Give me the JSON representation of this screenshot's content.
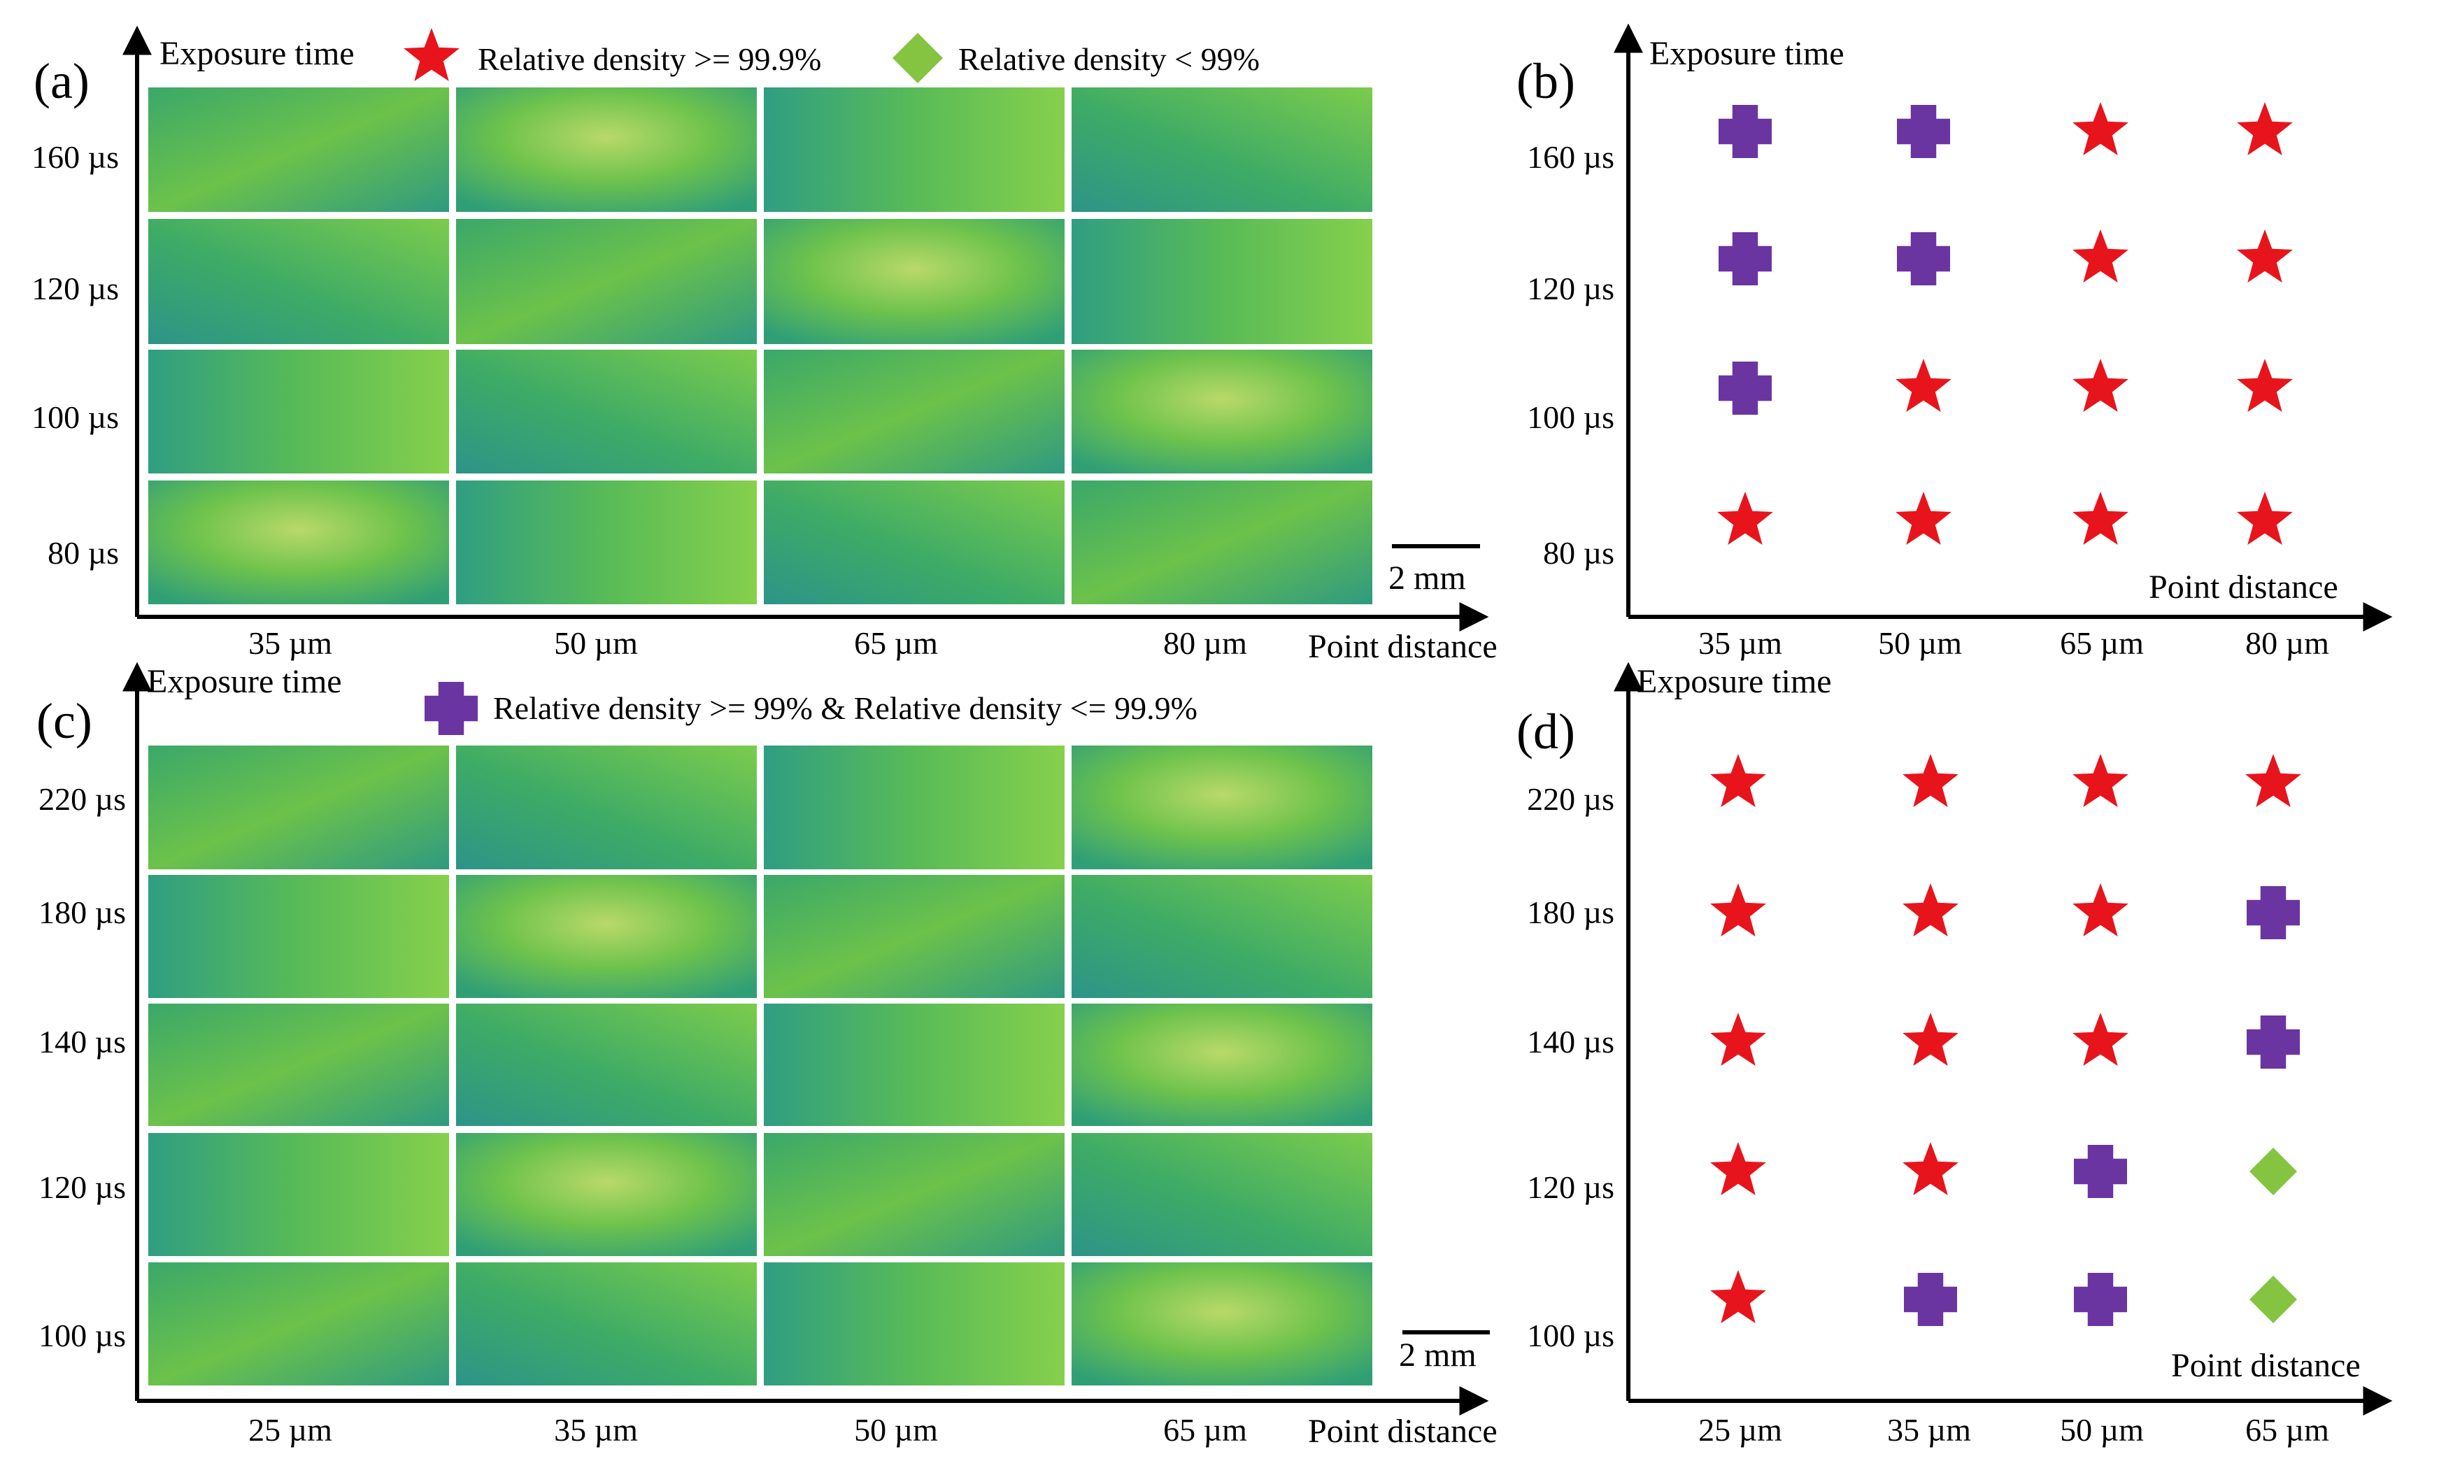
{
  "legend": {
    "high": {
      "label": "Relative density >= 99.9%",
      "marker": "star",
      "color": "#e8141c"
    },
    "low": {
      "label": "Relative density < 99%",
      "marker": "diamond",
      "color": "#84c441"
    },
    "mid": {
      "label": "Relative density >= 99% & Relative density <= 99.9%",
      "marker": "plus",
      "color": "#6a35a0"
    }
  },
  "scale_bar_label": "2 mm",
  "panels": {
    "a": {
      "label": "(a)",
      "y_axis_title": "Exposure time",
      "x_axis_title": "Point distance",
      "rows": [
        "160 µs",
        "120 µs",
        "100 µs",
        "80 µs"
      ],
      "cols": [
        "35 µm",
        "50 µm",
        "65 µm",
        "80 µm"
      ]
    },
    "b": {
      "label": "(b)",
      "y_axis_title": "Exposure time",
      "x_axis_title": "Point distance",
      "rows": [
        "160 µs",
        "120 µs",
        "100 µs",
        "80 µs"
      ],
      "cols": [
        "35 µm",
        "50 µm",
        "65 µm",
        "80 µm"
      ],
      "grid": [
        [
          "plus",
          "plus",
          "star",
          "star"
        ],
        [
          "plus",
          "plus",
          "star",
          "star"
        ],
        [
          "plus",
          "star",
          "star",
          "star"
        ],
        [
          "star",
          "star",
          "star",
          "star"
        ]
      ]
    },
    "c": {
      "label": "(c)",
      "y_axis_title": "Exposure time",
      "x_axis_title": "Point distance",
      "rows": [
        "220 µs",
        "180 µs",
        "140 µs",
        "120 µs",
        "100 µs"
      ],
      "cols": [
        "25 µm",
        "35 µm",
        "50 µm",
        "65 µm"
      ]
    },
    "d": {
      "label": "(d)",
      "y_axis_title": "Exposure time",
      "x_axis_title": "Point distance",
      "rows": [
        "220 µs",
        "180 µs",
        "140 µs",
        "120 µs",
        "100 µs"
      ],
      "cols": [
        "25 µm",
        "35 µm",
        "50 µm",
        "65 µm"
      ],
      "grid": [
        [
          "star",
          "star",
          "star",
          "star"
        ],
        [
          "star",
          "star",
          "star",
          "plus"
        ],
        [
          "star",
          "star",
          "star",
          "plus"
        ],
        [
          "star",
          "star",
          "plus",
          "diamond"
        ],
        [
          "star",
          "plus",
          "plus",
          "diamond"
        ]
      ]
    }
  }
}
